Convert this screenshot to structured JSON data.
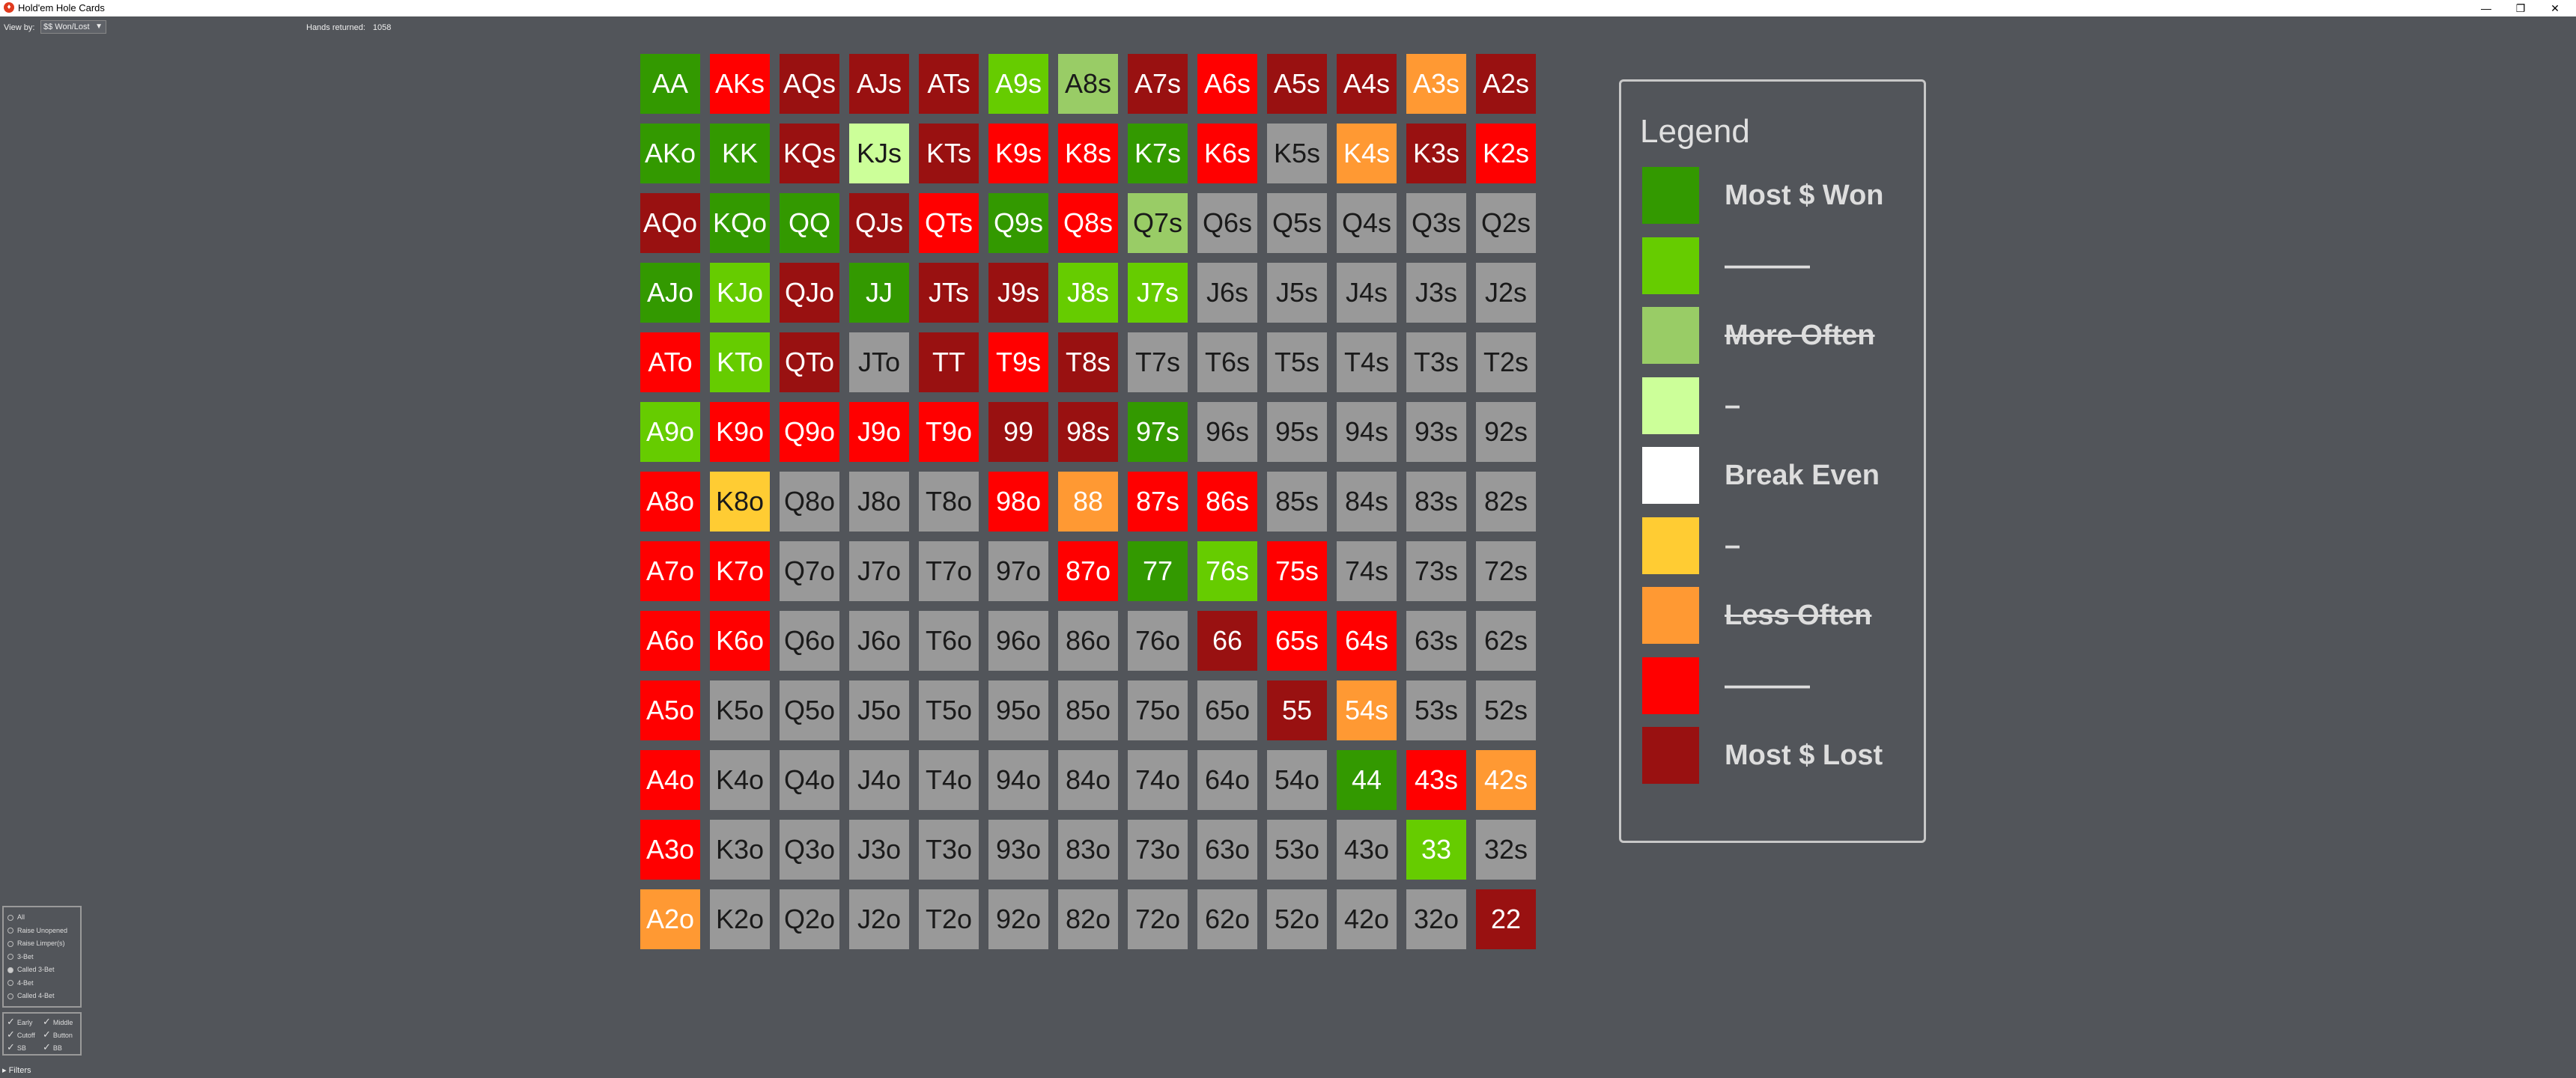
{
  "window": {
    "title": "Hold'em Hole Cards",
    "controls": [
      "—",
      "❐",
      "✕"
    ]
  },
  "toolbar": {
    "view_by_label": "View by:",
    "view_by_value": "$$ Won/Lost",
    "hands_label": "Hands returned:",
    "hands_value": "1058"
  },
  "colors": {
    "most_won": "#339900",
    "won": "#66cc00",
    "more_often": "#99cc66",
    "slightly_more": "#ccff99",
    "break_even": "#ffffff",
    "slightly_less": "#ffcc33",
    "less_often": "#ff9933",
    "lost": "#ff0000",
    "most_lost": "#991111",
    "neutral": "#999999"
  },
  "grid": {
    "rows": [
      [
        [
          "AA",
          "most_won"
        ],
        [
          "AKs",
          "lost"
        ],
        [
          "AQs",
          "most_lost"
        ],
        [
          "AJs",
          "most_lost"
        ],
        [
          "ATs",
          "most_lost"
        ],
        [
          "A9s",
          "won"
        ],
        [
          "A8s",
          "more_often"
        ],
        [
          "A7s",
          "most_lost"
        ],
        [
          "A6s",
          "lost"
        ],
        [
          "A5s",
          "most_lost"
        ],
        [
          "A4s",
          "most_lost"
        ],
        [
          "A3s",
          "less_often"
        ],
        [
          "A2s",
          "most_lost"
        ]
      ],
      [
        [
          "AKo",
          "most_won"
        ],
        [
          "KK",
          "most_won"
        ],
        [
          "KQs",
          "most_lost"
        ],
        [
          "KJs",
          "slightly_more"
        ],
        [
          "KTs",
          "most_lost"
        ],
        [
          "K9s",
          "lost"
        ],
        [
          "K8s",
          "lost"
        ],
        [
          "K7s",
          "most_won"
        ],
        [
          "K6s",
          "lost"
        ],
        [
          "K5s",
          "neutral"
        ],
        [
          "K4s",
          "less_often"
        ],
        [
          "K3s",
          "most_lost"
        ],
        [
          "K2s",
          "lost"
        ]
      ],
      [
        [
          "AQo",
          "most_lost"
        ],
        [
          "KQo",
          "most_won"
        ],
        [
          "QQ",
          "most_won"
        ],
        [
          "QJs",
          "most_lost"
        ],
        [
          "QTs",
          "lost"
        ],
        [
          "Q9s",
          "most_won"
        ],
        [
          "Q8s",
          "lost"
        ],
        [
          "Q7s",
          "more_often"
        ],
        [
          "Q6s",
          "neutral"
        ],
        [
          "Q5s",
          "neutral"
        ],
        [
          "Q4s",
          "neutral"
        ],
        [
          "Q3s",
          "neutral"
        ],
        [
          "Q2s",
          "neutral"
        ]
      ],
      [
        [
          "AJo",
          "most_won"
        ],
        [
          "KJo",
          "won"
        ],
        [
          "QJo",
          "most_lost"
        ],
        [
          "JJ",
          "most_won"
        ],
        [
          "JTs",
          "most_lost"
        ],
        [
          "J9s",
          "most_lost"
        ],
        [
          "J8s",
          "won"
        ],
        [
          "J7s",
          "won"
        ],
        [
          "J6s",
          "neutral"
        ],
        [
          "J5s",
          "neutral"
        ],
        [
          "J4s",
          "neutral"
        ],
        [
          "J3s",
          "neutral"
        ],
        [
          "J2s",
          "neutral"
        ]
      ],
      [
        [
          "ATo",
          "lost"
        ],
        [
          "KTo",
          "won"
        ],
        [
          "QTo",
          "most_lost"
        ],
        [
          "JTo",
          "neutral"
        ],
        [
          "TT",
          "most_lost"
        ],
        [
          "T9s",
          "lost"
        ],
        [
          "T8s",
          "most_lost"
        ],
        [
          "T7s",
          "neutral"
        ],
        [
          "T6s",
          "neutral"
        ],
        [
          "T5s",
          "neutral"
        ],
        [
          "T4s",
          "neutral"
        ],
        [
          "T3s",
          "neutral"
        ],
        [
          "T2s",
          "neutral"
        ]
      ],
      [
        [
          "A9o",
          "won"
        ],
        [
          "K9o",
          "lost"
        ],
        [
          "Q9o",
          "lost"
        ],
        [
          "J9o",
          "lost"
        ],
        [
          "T9o",
          "lost"
        ],
        [
          "99",
          "most_lost"
        ],
        [
          "98s",
          "most_lost"
        ],
        [
          "97s",
          "most_won"
        ],
        [
          "96s",
          "neutral"
        ],
        [
          "95s",
          "neutral"
        ],
        [
          "94s",
          "neutral"
        ],
        [
          "93s",
          "neutral"
        ],
        [
          "92s",
          "neutral"
        ]
      ],
      [
        [
          "A8o",
          "lost"
        ],
        [
          "K8o",
          "slightly_less"
        ],
        [
          "Q8o",
          "neutral"
        ],
        [
          "J8o",
          "neutral"
        ],
        [
          "T8o",
          "neutral"
        ],
        [
          "98o",
          "lost"
        ],
        [
          "88",
          "less_often"
        ],
        [
          "87s",
          "lost"
        ],
        [
          "86s",
          "lost"
        ],
        [
          "85s",
          "neutral"
        ],
        [
          "84s",
          "neutral"
        ],
        [
          "83s",
          "neutral"
        ],
        [
          "82s",
          "neutral"
        ]
      ],
      [
        [
          "A7o",
          "lost"
        ],
        [
          "K7o",
          "lost"
        ],
        [
          "Q7o",
          "neutral"
        ],
        [
          "J7o",
          "neutral"
        ],
        [
          "T7o",
          "neutral"
        ],
        [
          "97o",
          "neutral"
        ],
        [
          "87o",
          "lost"
        ],
        [
          "77",
          "most_won"
        ],
        [
          "76s",
          "won"
        ],
        [
          "75s",
          "lost"
        ],
        [
          "74s",
          "neutral"
        ],
        [
          "73s",
          "neutral"
        ],
        [
          "72s",
          "neutral"
        ]
      ],
      [
        [
          "A6o",
          "lost"
        ],
        [
          "K6o",
          "lost"
        ],
        [
          "Q6o",
          "neutral"
        ],
        [
          "J6o",
          "neutral"
        ],
        [
          "T6o",
          "neutral"
        ],
        [
          "96o",
          "neutral"
        ],
        [
          "86o",
          "neutral"
        ],
        [
          "76o",
          "neutral"
        ],
        [
          "66",
          "most_lost"
        ],
        [
          "65s",
          "lost"
        ],
        [
          "64s",
          "lost"
        ],
        [
          "63s",
          "neutral"
        ],
        [
          "62s",
          "neutral"
        ]
      ],
      [
        [
          "A5o",
          "lost"
        ],
        [
          "K5o",
          "neutral"
        ],
        [
          "Q5o",
          "neutral"
        ],
        [
          "J5o",
          "neutral"
        ],
        [
          "T5o",
          "neutral"
        ],
        [
          "95o",
          "neutral"
        ],
        [
          "85o",
          "neutral"
        ],
        [
          "75o",
          "neutral"
        ],
        [
          "65o",
          "neutral"
        ],
        [
          "55",
          "most_lost"
        ],
        [
          "54s",
          "less_often"
        ],
        [
          "53s",
          "neutral"
        ],
        [
          "52s",
          "neutral"
        ]
      ],
      [
        [
          "A4o",
          "lost"
        ],
        [
          "K4o",
          "neutral"
        ],
        [
          "Q4o",
          "neutral"
        ],
        [
          "J4o",
          "neutral"
        ],
        [
          "T4o",
          "neutral"
        ],
        [
          "94o",
          "neutral"
        ],
        [
          "84o",
          "neutral"
        ],
        [
          "74o",
          "neutral"
        ],
        [
          "64o",
          "neutral"
        ],
        [
          "54o",
          "neutral"
        ],
        [
          "44",
          "most_won"
        ],
        [
          "43s",
          "lost"
        ],
        [
          "42s",
          "less_often"
        ]
      ],
      [
        [
          "A3o",
          "lost"
        ],
        [
          "K3o",
          "neutral"
        ],
        [
          "Q3o",
          "neutral"
        ],
        [
          "J3o",
          "neutral"
        ],
        [
          "T3o",
          "neutral"
        ],
        [
          "93o",
          "neutral"
        ],
        [
          "83o",
          "neutral"
        ],
        [
          "73o",
          "neutral"
        ],
        [
          "63o",
          "neutral"
        ],
        [
          "53o",
          "neutral"
        ],
        [
          "43o",
          "neutral"
        ],
        [
          "33",
          "won"
        ],
        [
          "32s",
          "neutral"
        ]
      ],
      [
        [
          "A2o",
          "less_often"
        ],
        [
          "K2o",
          "neutral"
        ],
        [
          "Q2o",
          "neutral"
        ],
        [
          "J2o",
          "neutral"
        ],
        [
          "T2o",
          "neutral"
        ],
        [
          "92o",
          "neutral"
        ],
        [
          "82o",
          "neutral"
        ],
        [
          "72o",
          "neutral"
        ],
        [
          "62o",
          "neutral"
        ],
        [
          "52o",
          "neutral"
        ],
        [
          "42o",
          "neutral"
        ],
        [
          "32o",
          "neutral"
        ],
        [
          "22",
          "most_lost"
        ]
      ]
    ]
  },
  "legend": {
    "title": "Legend",
    "items": [
      {
        "color": "most_won",
        "label": "Most $ Won",
        "strike": false
      },
      {
        "color": "won",
        "label": "———",
        "strike": false
      },
      {
        "color": "more_often",
        "label": "More Often",
        "strike": true
      },
      {
        "color": "slightly_more",
        "label": "–",
        "strike": false
      },
      {
        "color": "break_even",
        "label": "Break Even",
        "strike": false
      },
      {
        "color": "slightly_less",
        "label": "–",
        "strike": false
      },
      {
        "color": "less_often",
        "label": "Less Often",
        "strike": true
      },
      {
        "color": "lost",
        "label": "———",
        "strike": false
      },
      {
        "color": "most_lost",
        "label": "Most $ Lost",
        "strike": false
      }
    ]
  },
  "filters": {
    "action_options": [
      {
        "label": "All",
        "selected": false
      },
      {
        "label": "Raise Unopened",
        "selected": false
      },
      {
        "label": "Raise Limper(s)",
        "selected": false
      },
      {
        "label": "3-Bet",
        "selected": false
      },
      {
        "label": "Called 3-Bet",
        "selected": true
      },
      {
        "label": "4-Bet",
        "selected": false
      },
      {
        "label": "Called 4-Bet",
        "selected": false
      }
    ],
    "positions": [
      {
        "label": "Early",
        "checked": true
      },
      {
        "label": "Middle",
        "checked": true
      },
      {
        "label": "Cutoff",
        "checked": true
      },
      {
        "label": "Button",
        "checked": true
      },
      {
        "label": "SB",
        "checked": true
      },
      {
        "label": "BB",
        "checked": true
      }
    ],
    "toggle_label": "Filters"
  }
}
